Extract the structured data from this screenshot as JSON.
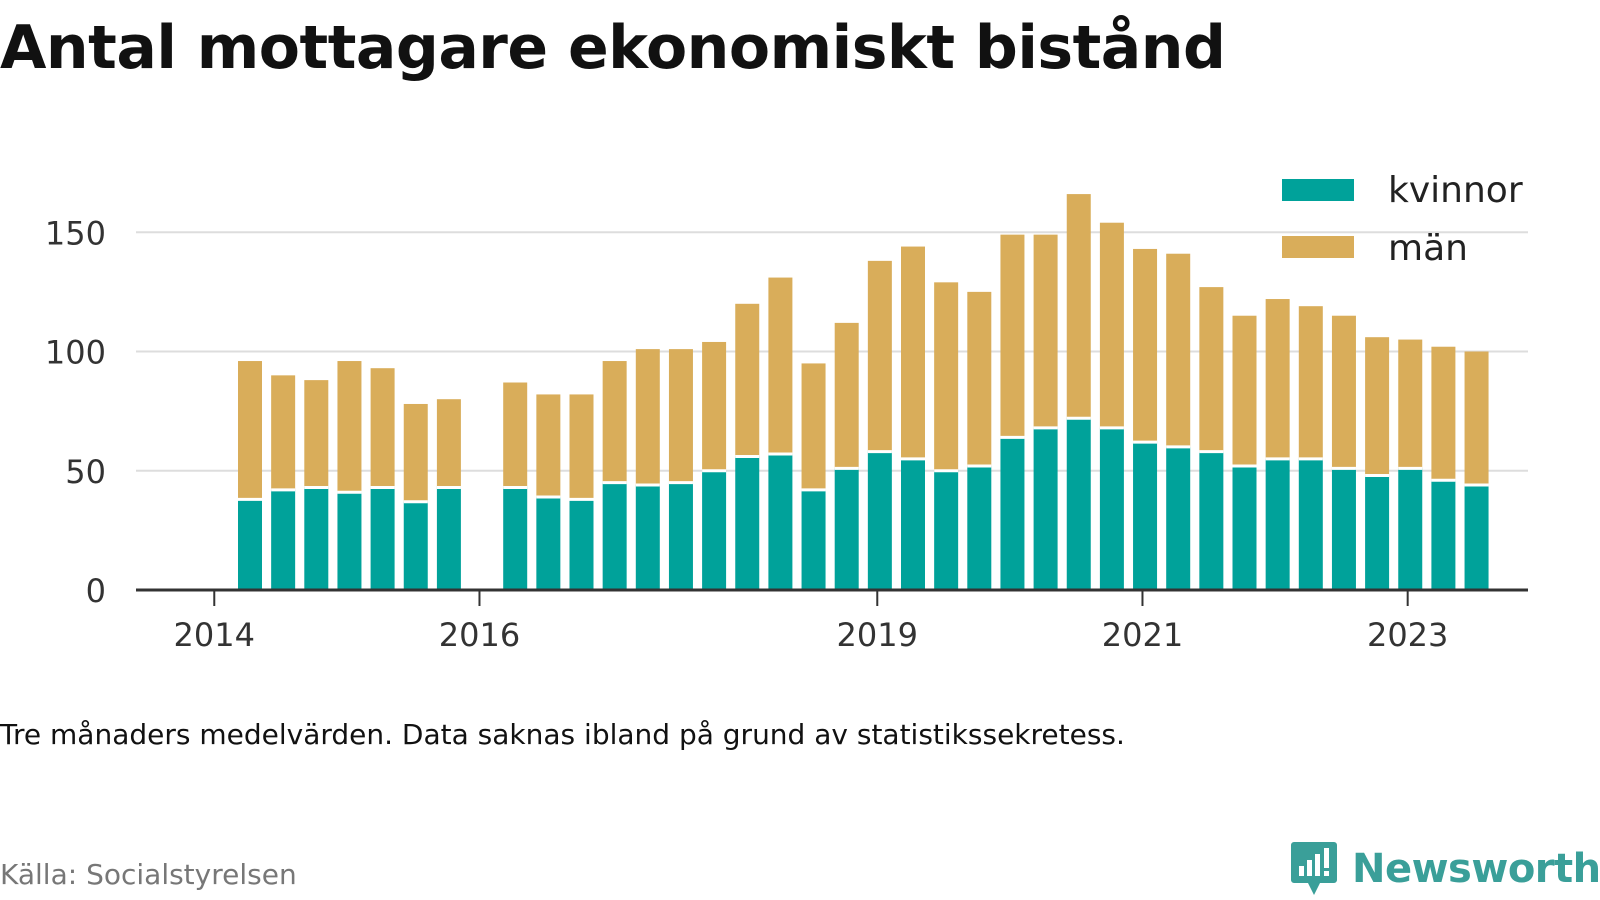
{
  "title": "Antal mottagare ekonomiskt bistånd",
  "caption": "Tre månaders medelvärden. Data saknas ibland på grund av statistikssekretess.",
  "source": "Källa: Socialstyrelsen",
  "brand": "Newsworthy",
  "colors": {
    "kvinnor": "#00a29a",
    "man": "#d9ad5a",
    "grid": "#dddddd",
    "axis": "#333333",
    "brand": "#3a9f99"
  },
  "chart_data": {
    "type": "bar",
    "stacked": true,
    "xlabel": "",
    "ylabel": "",
    "ylim": [
      0,
      175
    ],
    "y_ticks": [
      0,
      50,
      100,
      150
    ],
    "x_tick_labels": [
      "2014",
      "2016",
      "2019",
      "2021",
      "2023"
    ],
    "grid": true,
    "legend": "top-right",
    "categories": [
      "2014 Q2",
      "2014 Q3",
      "2014 Q4",
      "2015 Q1",
      "2015 Q2",
      "2015 Q3",
      "2015 Q4",
      "2016 Q1",
      "2016 Q2",
      "2016 Q3",
      "2016 Q4",
      "2017 Q1",
      "2017 Q2",
      "2017 Q3",
      "2017 Q4",
      "2018 Q1",
      "2018 Q2",
      "2018 Q3",
      "2018 Q4",
      "2019 Q1",
      "2019 Q2",
      "2019 Q3",
      "2019 Q4",
      "2020 Q1",
      "2020 Q2",
      "2020 Q3",
      "2020 Q4",
      "2021 Q1",
      "2021 Q2",
      "2021 Q3",
      "2021 Q4",
      "2022 Q1",
      "2022 Q2",
      "2022 Q3",
      "2022 Q4",
      "2023 Q1",
      "2023 Q2",
      "2023 Q3",
      "2023 Q4"
    ],
    "series": [
      {
        "name": "kvinnor",
        "values": [
          38,
          42,
          43,
          41,
          43,
          37,
          43,
          null,
          43,
          39,
          38,
          45,
          44,
          45,
          50,
          56,
          57,
          42,
          51,
          58,
          55,
          50,
          52,
          64,
          68,
          72,
          68,
          62,
          60,
          58,
          52,
          55,
          55,
          51,
          48,
          51,
          46,
          44,
          null
        ]
      },
      {
        "name": "män",
        "values": [
          58,
          48,
          45,
          55,
          50,
          41,
          37,
          null,
          44,
          43,
          44,
          51,
          57,
          56,
          54,
          64,
          74,
          53,
          61,
          80,
          89,
          79,
          73,
          85,
          81,
          94,
          86,
          81,
          81,
          69,
          63,
          67,
          64,
          64,
          58,
          54,
          56,
          56,
          null
        ]
      }
    ]
  }
}
